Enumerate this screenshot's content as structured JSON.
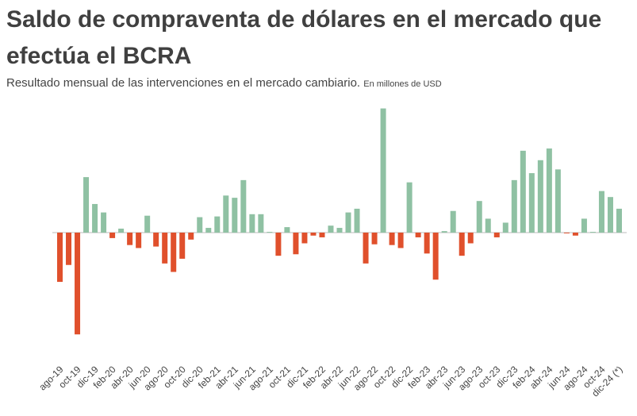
{
  "chart_data": {
    "type": "bar",
    "title": "Saldo de compraventa de dólares en el mercado que efectúa el BCRA",
    "subtitle": "Resultado  mensual de las intervenciones en el mercado cambiario.",
    "unit_note": "En millones de USD",
    "categories": [
      "ago-19",
      null,
      "oct-19",
      null,
      "dic-19",
      null,
      "feb-20",
      null,
      "abr-20",
      null,
      "jun-20",
      null,
      "ago-20",
      null,
      "oct-20",
      null,
      "dic-20",
      null,
      "feb-21",
      null,
      "abr-21",
      null,
      "jun-21",
      null,
      "ago-21",
      null,
      "oct-21",
      null,
      "dic-21",
      null,
      "feb-22",
      null,
      "abr-22",
      null,
      "jun-22",
      null,
      "ago-22",
      null,
      "oct-22",
      null,
      "dic-22",
      null,
      "feb-23",
      null,
      "abr-23",
      null,
      "jun-23",
      null,
      "ago-23",
      null,
      "oct-23",
      null,
      "dic-23",
      null,
      "feb-24",
      null,
      "abr-24",
      null,
      "jun-24",
      null,
      "ago-24",
      null,
      "oct-24",
      null,
      "dic-24 (*)"
    ],
    "values": [
      -1980,
      -1300,
      -4090,
      2230,
      1150,
      810,
      -220,
      160,
      -500,
      -620,
      680,
      -560,
      -1240,
      -1580,
      -1050,
      -280,
      620,
      190,
      650,
      1490,
      1400,
      2110,
      740,
      740,
      30,
      -930,
      220,
      -870,
      -430,
      -120,
      -190,
      280,
      190,
      810,
      960,
      -1240,
      -470,
      4990,
      -500,
      -620,
      2020,
      -190,
      -840,
      -1890,
      60,
      870,
      -930,
      -430,
      1270,
      560,
      -190,
      400,
      2110,
      3290,
      2390,
      2910,
      3380,
      2540,
      -30,
      -120,
      560,
      30,
      1670,
      1430,
      960
    ],
    "positive_color": "#8fc1a3",
    "negative_color": "#e0502c",
    "ylim": [
      -5200,
      5200
    ]
  }
}
